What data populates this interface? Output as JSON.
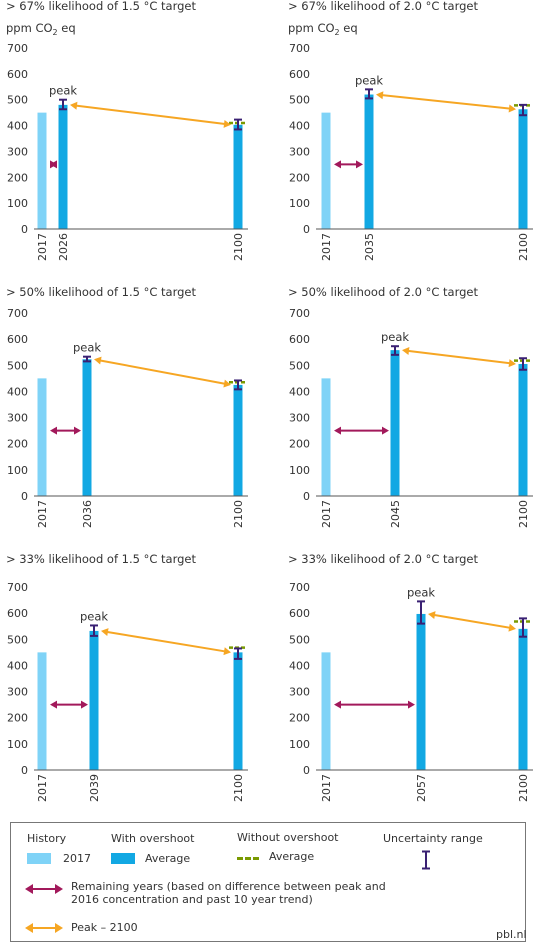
{
  "unit_label": {
    "text": "ppm CO",
    "sub": "2",
    "tail": " eq"
  },
  "peak_label": "peak",
  "chart_data": [
    {
      "type": "bar",
      "title": "> 67% likelihood of 1.5 °C target",
      "ylim": [
        0,
        700
      ],
      "yticks": [
        0,
        100,
        200,
        300,
        400,
        500,
        600,
        700
      ],
      "history": {
        "year": "2017",
        "value": 450
      },
      "peak": {
        "year": "2026",
        "value": 480,
        "range": [
          463,
          500
        ]
      },
      "end": {
        "year": "2100",
        "value": 403,
        "without_overshoot": 410,
        "range": [
          385,
          423
        ]
      }
    },
    {
      "type": "bar",
      "title": "> 67% likelihood of 2.0 °C target",
      "ylim": [
        0,
        700
      ],
      "yticks": [
        0,
        100,
        200,
        300,
        400,
        500,
        600,
        700
      ],
      "history": {
        "year": "2017",
        "value": 450
      },
      "peak": {
        "year": "2035",
        "value": 520,
        "range": [
          505,
          540
        ]
      },
      "end": {
        "year": "2100",
        "value": 463,
        "without_overshoot": 478,
        "range": [
          440,
          480
        ]
      }
    },
    {
      "type": "bar",
      "title": "> 50% likelihood of 1.5 °C target",
      "ylim": [
        0,
        700
      ],
      "yticks": [
        0,
        100,
        200,
        300,
        400,
        500,
        600,
        700
      ],
      "history": {
        "year": "2017",
        "value": 450
      },
      "peak": {
        "year": "2036",
        "value": 523,
        "range": [
          515,
          533
        ]
      },
      "end": {
        "year": "2100",
        "value": 425,
        "without_overshoot": 435,
        "range": [
          408,
          442
        ]
      }
    },
    {
      "type": "bar",
      "title": "> 50% likelihood of 2.0 °C target",
      "ylim": [
        0,
        700
      ],
      "yticks": [
        0,
        100,
        200,
        300,
        400,
        500,
        600,
        700
      ],
      "history": {
        "year": "2017",
        "value": 450
      },
      "peak": {
        "year": "2045",
        "value": 558,
        "range": [
          540,
          573
        ]
      },
      "end": {
        "year": "2100",
        "value": 505,
        "without_overshoot": 518,
        "range": [
          483,
          527
        ]
      }
    },
    {
      "type": "bar",
      "title": "> 33% likelihood of 1.5 °C target",
      "ylim": [
        0,
        700
      ],
      "yticks": [
        0,
        100,
        200,
        300,
        400,
        500,
        600,
        700
      ],
      "history": {
        "year": "2017",
        "value": 450
      },
      "peak": {
        "year": "2039",
        "value": 532,
        "range": [
          513,
          553
        ]
      },
      "end": {
        "year": "2100",
        "value": 450,
        "without_overshoot": 468,
        "range": [
          425,
          465
        ]
      }
    },
    {
      "type": "bar",
      "title": "> 33% likelihood of 2.0 °C target",
      "ylim": [
        0,
        700
      ],
      "yticks": [
        0,
        100,
        200,
        300,
        400,
        500,
        600,
        700
      ],
      "history": {
        "year": "2017",
        "value": 450
      },
      "peak": {
        "year": "2057",
        "value": 597,
        "range": [
          560,
          645
        ]
      },
      "end": {
        "year": "2100",
        "value": 540,
        "without_overshoot": 568,
        "range": [
          510,
          580
        ]
      }
    }
  ],
  "legend": {
    "history_title": "History",
    "history_item": "2017",
    "overshoot_title": "With overshoot",
    "overshoot_item": "Average",
    "no_overshoot_title": "Without overshoot",
    "no_overshoot_item": "Average",
    "uncertainty_title": "Uncertainty range",
    "remaining_line1": "Remaining years (based on difference between peak and",
    "remaining_line2": "2016 concentration and past 10 year trend)",
    "peak_item": "Peak – 2100"
  },
  "credit": "pbl.nl",
  "colors": {
    "history": "#7fd3f7",
    "average": "#12a8e3",
    "without_overshoot": "#7a9a01",
    "uncertainty": "#3a2073",
    "remaining": "#a2195b",
    "peak_arrow": "#f6a623",
    "axis": "#555555",
    "text": "#333333"
  }
}
